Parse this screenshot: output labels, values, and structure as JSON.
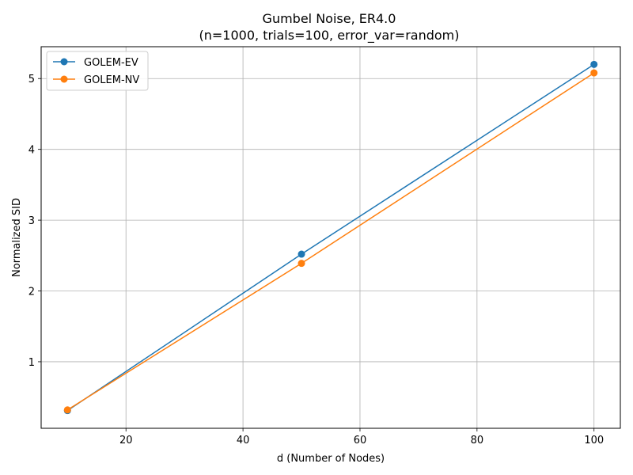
{
  "chart_data": {
    "type": "line",
    "title": "Gumbel Noise, ER4.0",
    "subtitle": "(n=1000, trials=100, error_var=random)",
    "xlabel": "d (Number of Nodes)",
    "ylabel": "Normalized SID",
    "x": [
      10,
      50,
      100
    ],
    "xlim": [
      5.5,
      104.5
    ],
    "ylim": [
      0.06,
      5.45
    ],
    "xticks": [
      20,
      40,
      60,
      80,
      100
    ],
    "yticks": [
      1,
      2,
      3,
      4,
      5
    ],
    "grid": true,
    "legend_position": "top-left",
    "series": [
      {
        "name": "GOLEM-EV",
        "color": "#1f77b4",
        "values": [
          0.31,
          2.52,
          5.2
        ]
      },
      {
        "name": "GOLEM-NV",
        "color": "#ff7f0e",
        "values": [
          0.32,
          2.39,
          5.08
        ]
      }
    ]
  }
}
